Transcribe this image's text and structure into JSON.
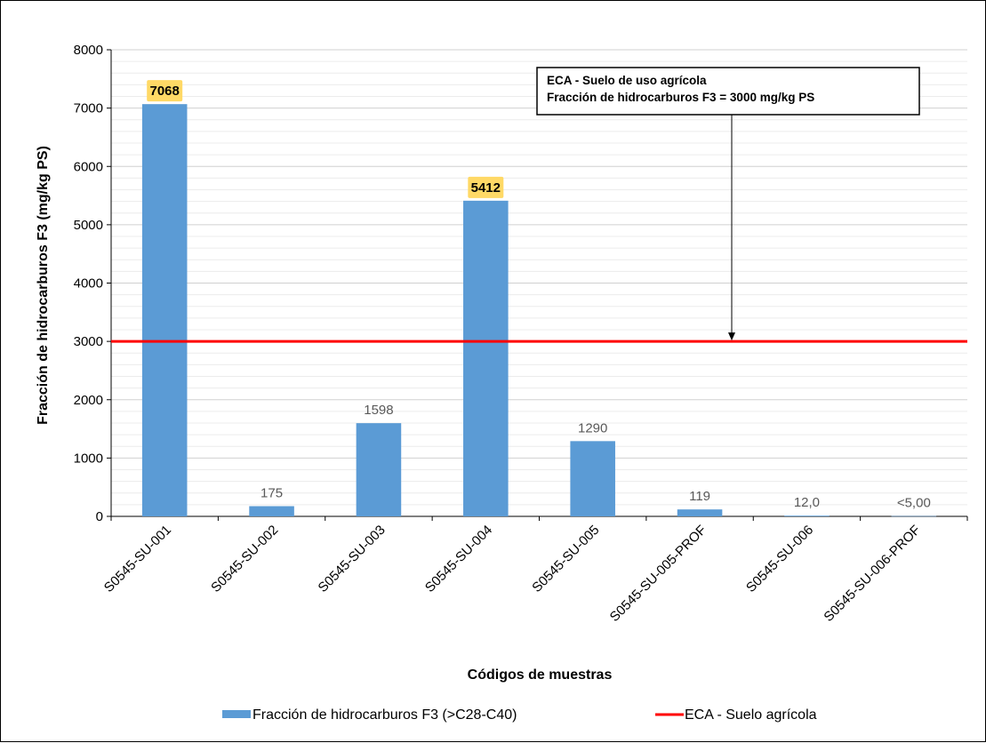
{
  "chart_data": {
    "type": "bar",
    "categories": [
      "S0545-SU-001",
      "S0545-SU-002",
      "S0545-SU-003",
      "S0545-SU-004",
      "S0545-SU-005",
      "S0545-SU-005-PROF",
      "S0545-SU-006",
      "S0545-SU-006-PROF"
    ],
    "series": [
      {
        "name": "Fracción de hidrocarburos F3 (>C28-C40)",
        "values": [
          7068,
          175,
          1598,
          5412,
          1290,
          119,
          12.0,
          5.0
        ],
        "labels": [
          "7068",
          "175",
          "1598",
          "5412",
          "1290",
          "119",
          "12,0",
          "<5,00"
        ],
        "highlighted": [
          true,
          false,
          false,
          true,
          false,
          false,
          false,
          false
        ],
        "color": "#5B9BD5"
      }
    ],
    "reference_line": {
      "name": "ECA - Suelo agrícola",
      "value": 3000,
      "color": "#FF0000"
    },
    "annotation": {
      "lines": [
        "ECA - Suelo de uso agrícola",
        "Fracción de hidrocarburos F3 = 3000 mg/kg PS"
      ]
    },
    "highlight_color": "#FFD966",
    "xlabel": "Códigos de muestras",
    "ylabel": "Fracción de hidrocarburos F3 (mg/kg PS)",
    "ylim": [
      0,
      8000
    ],
    "yticks": [
      0,
      1000,
      2000,
      3000,
      4000,
      5000,
      6000,
      7000,
      8000
    ],
    "grid": true,
    "legend_position": "bottom"
  }
}
